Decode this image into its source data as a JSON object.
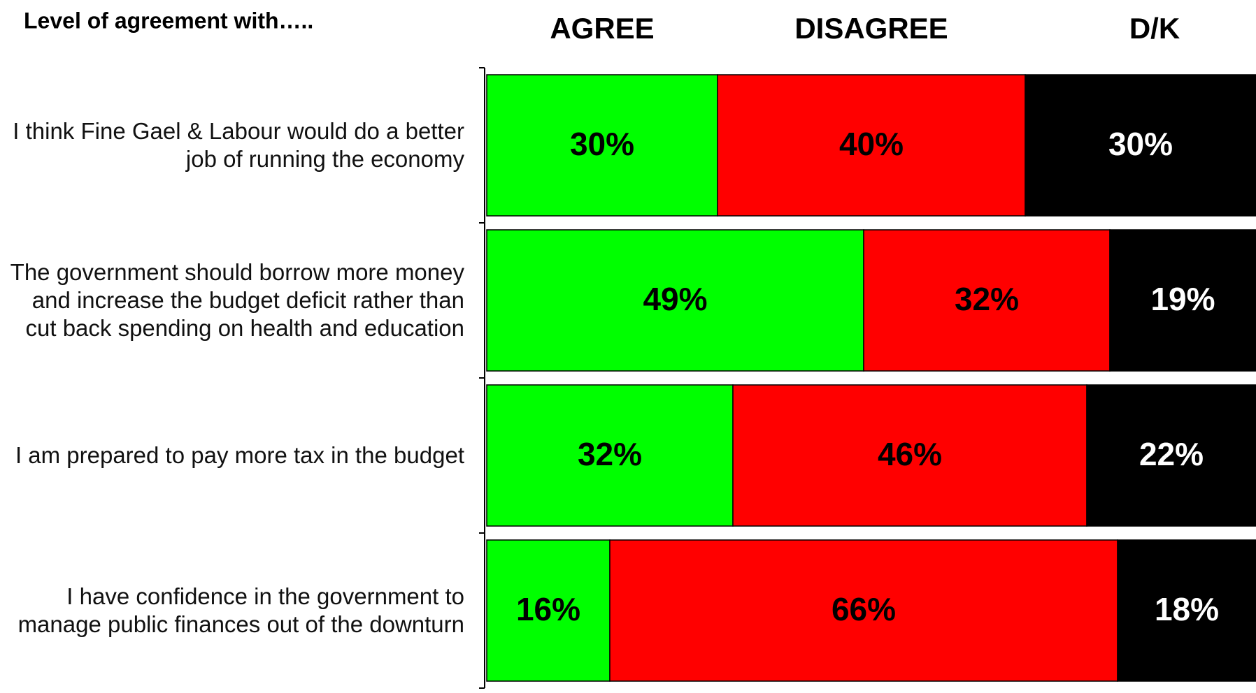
{
  "chart_data": {
    "type": "stacked_bar_horizontal",
    "title": "Level of agreement with…..",
    "categories": [
      "I think Fine Gael & Labour would do a better job of running the economy",
      "The government should borrow more money and increase the budget deficit rather than cut back spending on health and education",
      "I am prepared to pay more tax in the budget",
      "I have confidence in the government to manage public finances out of the downturn"
    ],
    "series": [
      {
        "name": "AGREE",
        "color": "#00ff00",
        "values": [
          30,
          49,
          32,
          16
        ],
        "value_labels": [
          "30%",
          "49%",
          "32%",
          "16%"
        ]
      },
      {
        "name": "DISAGREE",
        "color": "#ff0000",
        "values": [
          40,
          32,
          46,
          66
        ],
        "value_labels": [
          "40%",
          "32%",
          "46%",
          "66%"
        ]
      },
      {
        "name": "D/K",
        "color": "#000000",
        "values": [
          30,
          19,
          22,
          18
        ],
        "value_labels": [
          "30%",
          "19%",
          "22%",
          "18%"
        ]
      }
    ],
    "xlim": [
      0,
      100
    ]
  }
}
